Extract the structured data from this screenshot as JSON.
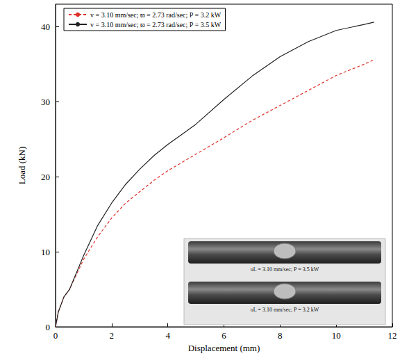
{
  "chart_data": {
    "type": "line",
    "x_label": "Displacement (mm)",
    "y_label": "Load (kN)",
    "x": [
      0,
      0.1,
      0.3,
      0.5,
      1,
      1.5,
      2,
      2.5,
      3,
      3.5,
      4,
      5,
      6,
      7,
      8,
      9,
      10,
      11,
      11.35
    ],
    "series": [
      {
        "name": "v = 3.10 mm/sec; ϖ = 2.73 rad/sec; P = 3.2 kW",
        "color": "#e0302a",
        "line_style": "dashed",
        "values": [
          0,
          2,
          4,
          5,
          9,
          12,
          14.5,
          16.5,
          18,
          19.5,
          20.8,
          23,
          25.2,
          27.5,
          29.5,
          31.5,
          33.5,
          35,
          35.6
        ]
      },
      {
        "name": "v = 3.10 mm/sec; ϖ = 2.73 rad/sec; P = 3.5 kW",
        "color": "#222222",
        "line_style": "solid",
        "values": [
          0,
          2,
          4,
          5,
          9.5,
          13.5,
          16.5,
          19,
          21,
          22.8,
          24.3,
          27,
          30.3,
          33.4,
          36,
          38,
          39.5,
          40.3,
          40.6
        ]
      }
    ],
    "xlim": [
      0,
      12
    ],
    "xticks": [
      0,
      2,
      4,
      6,
      8,
      10,
      12
    ],
    "ylim": [
      0,
      43
    ],
    "yticks": [
      0,
      10,
      20,
      30,
      40
    ],
    "grid": false,
    "legend": "upper left",
    "annotations": [
      "υL = 3.10 mm/sec; P = 3.5 kW",
      "υL = 3.10 mm/sec; P = 3.2 kW"
    ]
  }
}
